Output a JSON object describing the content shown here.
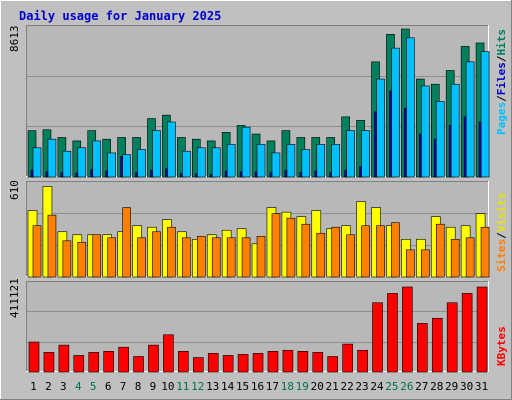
{
  "title": "Daily usage for January 2025",
  "colors": {
    "background": "#c0c0c0",
    "panel": "#b8b8b8",
    "title": "#0000cc",
    "hits": "#00805c",
    "files": "#00c0ff",
    "pages": "#0000c0",
    "visits": "#ffff00",
    "sites": "#ff8000",
    "kbytes": "#ff0000",
    "weekend_label": "#007050",
    "weekday_label": "#000000"
  },
  "chart_data": [
    {
      "type": "bar",
      "panel": "hits-files-pages",
      "ymax_label": "8613",
      "ylim": [
        0,
        8613
      ],
      "legend": [
        "Hits",
        "Files",
        "Pages"
      ],
      "categories": [
        "1",
        "2",
        "3",
        "4",
        "5",
        "6",
        "7",
        "8",
        "9",
        "10",
        "11",
        "12",
        "13",
        "14",
        "15",
        "16",
        "17",
        "18",
        "19",
        "20",
        "21",
        "22",
        "23",
        "24",
        "25",
        "26",
        "27",
        "28",
        "29",
        "30",
        "31"
      ],
      "weekend_days": [
        "4",
        "5",
        "11",
        "12",
        "18",
        "19",
        "25",
        "26"
      ],
      "series": [
        {
          "name": "Hits",
          "values": [
            2700,
            2750,
            2300,
            2100,
            2700,
            2200,
            2300,
            2300,
            3400,
            3600,
            2300,
            2200,
            2100,
            2600,
            3000,
            2500,
            2100,
            2700,
            2300,
            2300,
            2300,
            3500,
            3300,
            6700,
            8300,
            8613,
            5700,
            5400,
            6200,
            7600,
            7800
          ]
        },
        {
          "name": "Files",
          "values": [
            1700,
            2200,
            1500,
            1700,
            2100,
            1400,
            1300,
            1600,
            2700,
            3200,
            1500,
            1700,
            1700,
            1900,
            2900,
            1900,
            1400,
            1900,
            1600,
            1900,
            1900,
            2700,
            2700,
            5700,
            7500,
            8100,
            5300,
            4400,
            5400,
            6700,
            7300
          ]
        },
        {
          "name": "Pages",
          "values": [
            400,
            300,
            250,
            230,
            430,
            350,
            1200,
            250,
            400,
            480,
            200,
            180,
            160,
            350,
            300,
            300,
            250,
            380,
            260,
            350,
            250,
            400,
            600,
            3800,
            5000,
            4000,
            2500,
            2200,
            3000,
            3500,
            3200
          ]
        }
      ]
    },
    {
      "type": "bar",
      "panel": "visits-sites",
      "ymax_label": "610",
      "ylim": [
        0,
        610
      ],
      "legend": [
        "Visits",
        "Sites"
      ],
      "categories": [
        "1",
        "2",
        "3",
        "4",
        "5",
        "6",
        "7",
        "8",
        "9",
        "10",
        "11",
        "12",
        "13",
        "14",
        "15",
        "16",
        "17",
        "18",
        "19",
        "20",
        "21",
        "22",
        "23",
        "24",
        "25",
        "26",
        "27",
        "28",
        "29",
        "30",
        "31"
      ],
      "series": [
        {
          "name": "Visits",
          "values": [
            440,
            600,
            300,
            280,
            280,
            280,
            300,
            340,
            330,
            380,
            300,
            250,
            280,
            310,
            320,
            220,
            460,
            430,
            400,
            440,
            320,
            340,
            500,
            460,
            340,
            250,
            250,
            400,
            330,
            340,
            420
          ]
        },
        {
          "name": "Sites",
          "values": [
            340,
            410,
            240,
            230,
            280,
            260,
            460,
            260,
            300,
            330,
            260,
            270,
            260,
            260,
            260,
            270,
            420,
            390,
            350,
            290,
            330,
            280,
            340,
            340,
            360,
            180,
            180,
            350,
            250,
            260,
            330
          ]
        }
      ]
    },
    {
      "type": "bar",
      "panel": "kbytes",
      "ymax_label": "411121",
      "ylim": [
        0,
        411121
      ],
      "legend": [
        "KBytes"
      ],
      "categories": [
        "1",
        "2",
        "3",
        "4",
        "5",
        "6",
        "7",
        "8",
        "9",
        "10",
        "11",
        "12",
        "13",
        "14",
        "15",
        "16",
        "17",
        "18",
        "19",
        "20",
        "21",
        "22",
        "23",
        "24",
        "25",
        "26",
        "27",
        "28",
        "29",
        "30",
        "31"
      ],
      "series": [
        {
          "name": "KBytes",
          "values": [
            145000,
            95000,
            130000,
            80000,
            95000,
            100000,
            120000,
            75000,
            130000,
            180000,
            100000,
            70000,
            90000,
            80000,
            85000,
            90000,
            100000,
            105000,
            100000,
            95000,
            75000,
            135000,
            105000,
            335000,
            380000,
            411121,
            235000,
            260000,
            335000,
            380000,
            411121
          ]
        }
      ]
    }
  ]
}
